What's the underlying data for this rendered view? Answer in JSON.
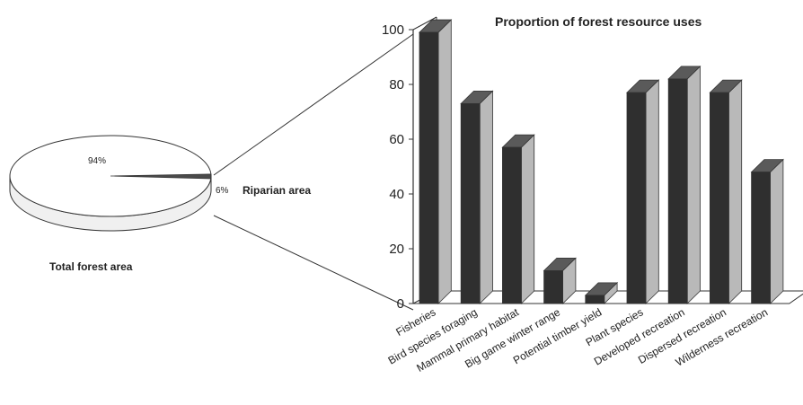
{
  "chart_data": [
    {
      "type": "pie",
      "title": "Total forest area",
      "slices": [
        {
          "label": "",
          "value": 94,
          "value_label": "94%"
        },
        {
          "label": "Riparian area",
          "value": 6,
          "value_label": "6%"
        }
      ]
    },
    {
      "type": "bar",
      "title": "Proportion of forest resource uses",
      "categories": [
        "Fisheries",
        "Bird species foraging",
        "Mammal primary habitat",
        "Big game winter range",
        "Potential timber yield",
        "Plant species",
        "Developed recreation",
        "Dispersed recreation",
        "Wilderness recreation"
      ],
      "values": [
        99,
        73,
        57,
        12,
        3,
        77,
        82,
        77,
        48
      ],
      "ylim": [
        0,
        100
      ],
      "yticks": [
        "0",
        "20",
        "40",
        "60",
        "80",
        "100"
      ],
      "xlabel": "",
      "ylabel": ""
    }
  ],
  "colors": {
    "bar_front": "#2f2f2f",
    "bar_top": "#5a5a5a",
    "bar_side": "#b9b9b9",
    "pie_top": "#ffffff",
    "pie_side": "#f0f0f0",
    "riparian": "#4a4a4a",
    "outline": "#333333"
  }
}
